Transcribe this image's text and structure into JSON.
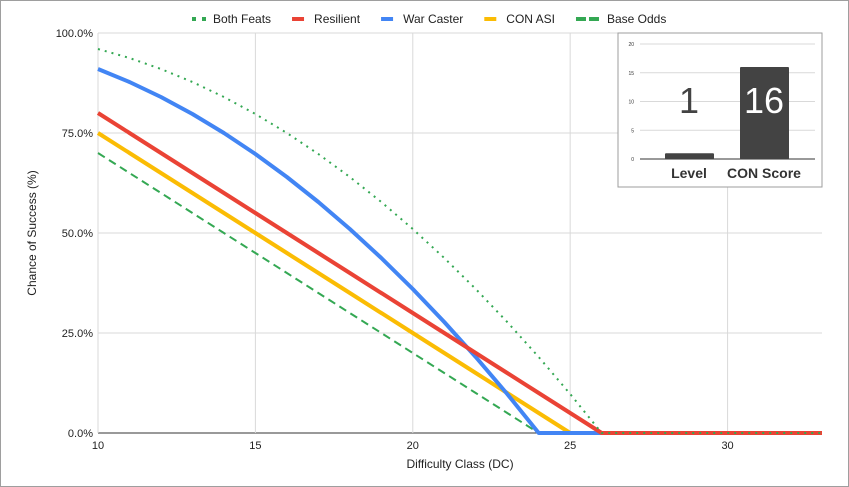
{
  "chart_data": [
    {
      "type": "line",
      "xlabel": "Difficulty Class (DC)",
      "ylabel": "Chance of Success (%)",
      "xlim": [
        10,
        33
      ],
      "ylim": [
        0,
        100
      ],
      "x_ticks": [
        10,
        15,
        20,
        25,
        30
      ],
      "y_ticks": [
        "0.0%",
        "25.0%",
        "50.0%",
        "75.0%",
        "100.0%"
      ],
      "y_tick_values": [
        0,
        25,
        50,
        75,
        100
      ],
      "grid": true,
      "legend_position": "top",
      "x": [
        10,
        11,
        12,
        13,
        14,
        15,
        16,
        17,
        18,
        19,
        20,
        21,
        22,
        23,
        24,
        25,
        26,
        27,
        28,
        29,
        30,
        31,
        32,
        33
      ],
      "series": [
        {
          "name": "Both Feats",
          "color": "#34a853",
          "style": "dotted",
          "values": [
            96,
            93.75,
            91,
            87.75,
            84,
            79.75,
            75,
            69.75,
            64,
            57.75,
            51,
            43.75,
            36,
            27.75,
            19,
            9.75,
            0,
            0,
            0,
            0,
            0,
            0,
            0,
            0
          ]
        },
        {
          "name": "Resilient",
          "color": "#ea4335",
          "style": "solid",
          "values": [
            80,
            75,
            70,
            65,
            60,
            55,
            50,
            45,
            40,
            35,
            30,
            25,
            20,
            15,
            10,
            5,
            0,
            0,
            0,
            0,
            0,
            0,
            0,
            0
          ]
        },
        {
          "name": "War Caster",
          "color": "#4285f4",
          "style": "solid",
          "values": [
            91,
            87.75,
            84,
            79.75,
            75,
            69.75,
            64,
            57.75,
            51,
            43.75,
            36,
            27.75,
            19,
            9.75,
            0,
            0,
            0,
            0,
            0,
            0,
            0,
            0,
            0,
            0
          ]
        },
        {
          "name": "CON ASI",
          "color": "#fbbc04",
          "style": "solid",
          "values": [
            75,
            70,
            65,
            60,
            55,
            50,
            45,
            40,
            35,
            30,
            25,
            20,
            15,
            10,
            5,
            0,
            0,
            0,
            0,
            0,
            0,
            0,
            0,
            0
          ]
        },
        {
          "name": "Base Odds",
          "color": "#34a853",
          "style": "dashed",
          "values": [
            70,
            65,
            60,
            55,
            50,
            45,
            40,
            35,
            30,
            25,
            20,
            15,
            10,
            5,
            0,
            0,
            0,
            0,
            0,
            0,
            0,
            0,
            0,
            0
          ]
        }
      ]
    },
    {
      "type": "bar",
      "categories": [
        "Level",
        "CON Score"
      ],
      "values": [
        1,
        16
      ],
      "data_labels": [
        "1",
        "16"
      ],
      "ylim": [
        0,
        20
      ],
      "y_ticks": [
        "0",
        "5",
        "10",
        "15",
        "20"
      ],
      "y_tick_values": [
        0,
        5,
        10,
        15,
        20
      ],
      "color": "#434343",
      "grid": true
    }
  ]
}
